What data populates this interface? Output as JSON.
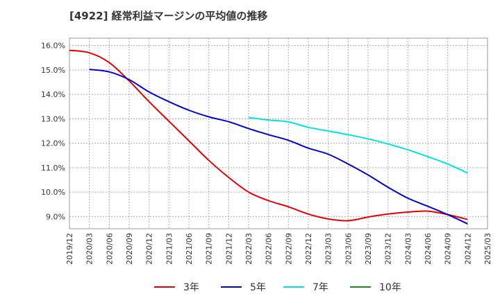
{
  "chart_data": {
    "type": "line",
    "title": "[4922]  経常利益マージンの平均値の推移",
    "xlabel": "",
    "ylabel": "",
    "x_ticks": [
      "2019/12",
      "2020/03",
      "2020/06",
      "2020/09",
      "2020/12",
      "2021/03",
      "2021/06",
      "2021/09",
      "2021/12",
      "2022/03",
      "2022/06",
      "2022/09",
      "2022/12",
      "2023/03",
      "2023/06",
      "2023/09",
      "2023/12",
      "2024/03",
      "2024/06",
      "2024/09",
      "2024/12",
      "2025/03"
    ],
    "y_ticks": [
      "9.0%",
      "10.0%",
      "11.0%",
      "12.0%",
      "13.0%",
      "14.0%",
      "15.0%",
      "16.0%"
    ],
    "ylim": [
      8.5,
      16.3
    ],
    "grid": true,
    "legend_position": "bottom",
    "series": [
      {
        "name": "3年",
        "color": "#e00000",
        "x": [
          "2019/12",
          "2020/03",
          "2020/06",
          "2020/09",
          "2020/12",
          "2021/03",
          "2021/06",
          "2021/09",
          "2021/12",
          "2022/03",
          "2022/06",
          "2022/09",
          "2022/12",
          "2023/03",
          "2023/06",
          "2023/09",
          "2023/12",
          "2024/03",
          "2024/06",
          "2024/09",
          "2024/12"
        ],
        "values": [
          15.8,
          15.7,
          15.3,
          14.55,
          13.7,
          12.9,
          12.1,
          11.3,
          10.6,
          10.0,
          9.65,
          9.4,
          9.1,
          8.9,
          8.83,
          8.98,
          9.1,
          9.18,
          9.22,
          9.08,
          8.88
        ]
      },
      {
        "name": "5年",
        "color": "#0000c8",
        "x": [
          "2020/03",
          "2020/06",
          "2020/09",
          "2020/12",
          "2021/03",
          "2021/06",
          "2021/09",
          "2021/12",
          "2022/03",
          "2022/06",
          "2022/09",
          "2022/12",
          "2023/03",
          "2023/06",
          "2023/09",
          "2023/12",
          "2024/03",
          "2024/06",
          "2024/09",
          "2024/12"
        ],
        "values": [
          15.02,
          14.92,
          14.6,
          14.1,
          13.7,
          13.35,
          13.08,
          12.88,
          12.6,
          12.35,
          12.12,
          11.8,
          11.55,
          11.15,
          10.7,
          10.2,
          9.75,
          9.42,
          9.08,
          8.7
        ]
      },
      {
        "name": "7年",
        "color": "#00e0e0",
        "x": [
          "2022/03",
          "2022/06",
          "2022/09",
          "2022/12",
          "2023/03",
          "2023/06",
          "2023/09",
          "2023/12",
          "2024/03",
          "2024/06",
          "2024/09",
          "2024/12"
        ],
        "values": [
          13.05,
          12.95,
          12.87,
          12.65,
          12.5,
          12.35,
          12.18,
          11.97,
          11.73,
          11.45,
          11.15,
          10.78
        ]
      },
      {
        "name": "10年",
        "color": "#1a8a1a",
        "x": [],
        "values": []
      }
    ]
  }
}
